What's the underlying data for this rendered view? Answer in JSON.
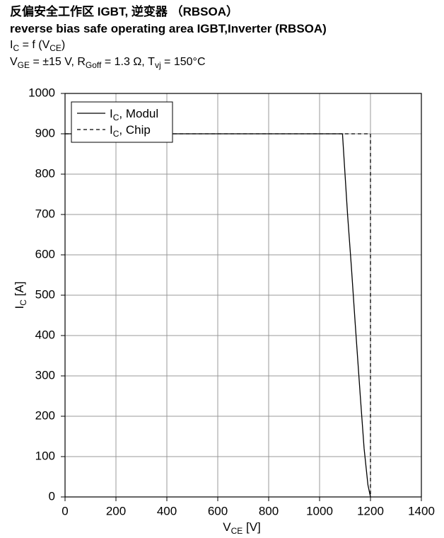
{
  "chart_data": {
    "type": "line",
    "title": "反偏安全工作区 IGBT, 逆变器 （RBSOA）",
    "subtitle": "reverse bias safe operating area IGBT,Inverter (RBSOA)",
    "function_label": [
      "I",
      "C",
      " = f (V",
      "CE",
      ")"
    ],
    "conditions": [
      "V",
      "GE",
      " = ±15 V, R",
      "Goff",
      " = 1.3 Ω, T",
      "vj",
      " = 150°C"
    ],
    "x_label": [
      "V",
      "CE",
      "  [V]"
    ],
    "y_label": [
      "I",
      "C",
      " [A]"
    ],
    "xlim": [
      0,
      1400
    ],
    "ylim": [
      0,
      1000
    ],
    "xticks": [
      0,
      200,
      400,
      600,
      800,
      1000,
      1200,
      1400
    ],
    "yticks": [
      0,
      100,
      200,
      300,
      400,
      500,
      600,
      700,
      800,
      900,
      1000
    ],
    "grid": true,
    "legend": "upper left",
    "series": [
      {
        "name": [
          "I",
          "C",
          ", Modul"
        ],
        "color": "#000000",
        "linestyle": "solid",
        "x": [
          0,
          1090,
          1100,
          1110,
          1125,
          1140,
          1160,
          1175,
          1190,
          1200
        ],
        "values": [
          900,
          900,
          800,
          700,
          570,
          430,
          250,
          120,
          30,
          0
        ]
      },
      {
        "name": [
          "I",
          "C",
          ", Chip"
        ],
        "color": "#000000",
        "linestyle": "dashed",
        "x": [
          0,
          1200,
          1200
        ],
        "values": [
          900,
          900,
          0
        ]
      }
    ]
  }
}
